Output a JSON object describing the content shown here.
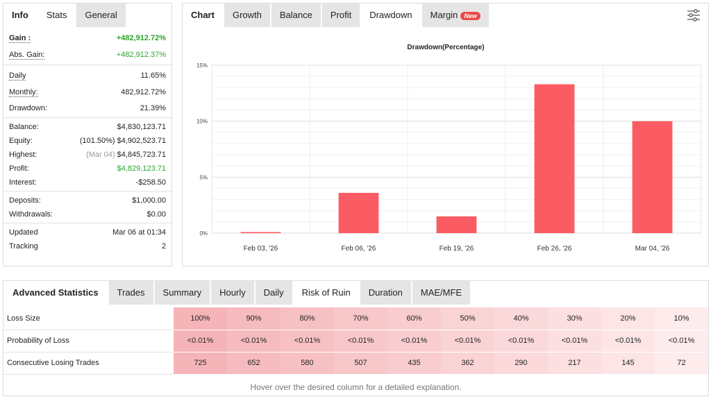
{
  "info_tabs": [
    "Info",
    "Stats",
    "General"
  ],
  "stats": {
    "gain": {
      "label": "Gain :",
      "value": "+482,912.72%"
    },
    "abs_gain": {
      "label": "Abs. Gain:",
      "value": "+482,912.37%"
    },
    "daily": {
      "label": "Daily",
      "value": "11.65%"
    },
    "monthly": {
      "label": "Monthly:",
      "value": "482,912.72%"
    },
    "drawdown": {
      "label": "Drawdown:",
      "value": "21.39%"
    },
    "balance": {
      "label": "Balance:",
      "value": "$4,830,123.71"
    },
    "equity": {
      "label": "Equity:",
      "pct": "(101.50%)",
      "value": "$4,902,523.71"
    },
    "highest": {
      "label": "Highest:",
      "date": "(Mar 04)",
      "value": "$4,845,723.71"
    },
    "profit": {
      "label": "Profit:",
      "value": "$4,829,123.71"
    },
    "interest": {
      "label": "Interest:",
      "value": "-$258.50"
    },
    "deposits": {
      "label": "Deposits:",
      "value": "$1,000.00"
    },
    "withdrawals": {
      "label": "Withdrawals:",
      "value": "$0.00"
    },
    "updated": {
      "label": "Updated",
      "value": "Mar 06 at 01:34"
    },
    "tracking": {
      "label": "Tracking",
      "value": "2"
    }
  },
  "chart_tabs": [
    "Chart",
    "Growth",
    "Balance",
    "Profit",
    "Drawdown",
    "Margin"
  ],
  "new_badge": "New",
  "settings_icon": "sliders-icon",
  "chart_data": {
    "type": "bar",
    "title": "Drawdown(Percentage)",
    "categories": [
      "Feb 03, '26",
      "Feb 06, '26",
      "Feb 19, '26",
      "Feb 26, '26",
      "Mar 04, '26"
    ],
    "values": [
      0.1,
      3.6,
      1.5,
      13.3,
      10.0
    ],
    "ylim": [
      0,
      15
    ],
    "yticks": [
      "0%",
      "5%",
      "10%",
      "15%"
    ],
    "bar_color": "#fb5c63",
    "grid": true
  },
  "adv_tabs": [
    "Advanced Statistics",
    "Trades",
    "Summary",
    "Hourly",
    "Daily",
    "Risk of Ruin",
    "Duration",
    "MAE/MFE"
  ],
  "risk_of_ruin": {
    "rows": [
      {
        "label": "Loss Size",
        "cells": [
          "100%",
          "90%",
          "80%",
          "70%",
          "60%",
          "50%",
          "40%",
          "30%",
          "20%",
          "10%"
        ]
      },
      {
        "label": "Probability of Loss",
        "cells": [
          "<0.01%",
          "<0.01%",
          "<0.01%",
          "<0.01%",
          "<0.01%",
          "<0.01%",
          "<0.01%",
          "<0.01%",
          "<0.01%",
          "<0.01%"
        ]
      },
      {
        "label": "Consecutive Losing Trades",
        "cells": [
          "725",
          "652",
          "580",
          "507",
          "435",
          "362",
          "290",
          "217",
          "145",
          "72"
        ]
      }
    ],
    "column_colors": [
      "#f5b5b8",
      "#f6bbbe",
      "#f7c1c4",
      "#f8c7ca",
      "#f9cdd0",
      "#fad3d5",
      "#fbd9db",
      "#fcdfe1",
      "#fde5e6",
      "#feebec"
    ],
    "hint": "Hover over the desired column for a detailed explanation."
  }
}
